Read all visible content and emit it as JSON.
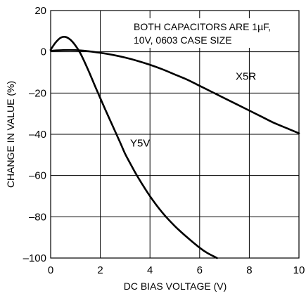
{
  "chart_data": {
    "type": "line",
    "xlabel": "DC BIAS VOLTAGE (V)",
    "ylabel": "CHANGE IN VALUE (%)",
    "xlim": [
      0,
      10
    ],
    "ylim": [
      -100,
      20
    ],
    "x_ticks": [
      "0",
      "2",
      "4",
      "6",
      "8",
      "10"
    ],
    "y_ticks": [
      "20",
      "0",
      "–20",
      "–40",
      "–60",
      "–80",
      "–100"
    ],
    "grid": true,
    "annotation": {
      "line1": "BOTH CAPACITORS ARE 1µF,",
      "line2": "10V, 0603 CASE SIZE"
    },
    "series": [
      {
        "name": "X5R",
        "x": [
          0,
          0.5,
          1,
          1.5,
          2,
          2.5,
          3,
          3.5,
          4,
          4.5,
          5,
          5.5,
          6,
          6.5,
          7,
          7.5,
          8,
          8.5,
          9,
          9.5,
          10
        ],
        "y": [
          0.5,
          0.8,
          0.8,
          0.3,
          -0.5,
          -1.5,
          -2.8,
          -4.4,
          -6.3,
          -8.5,
          -11,
          -13.5,
          -16.5,
          -19.5,
          -22.5,
          -25.5,
          -28.5,
          -31.5,
          -34.5,
          -37,
          -39.5
        ]
      },
      {
        "name": "Y5V",
        "x": [
          0,
          0.2,
          0.4,
          0.6,
          0.8,
          1.0,
          1.2,
          1.5,
          1.8,
          2.0,
          2.2,
          2.5,
          2.8,
          3.0,
          3.2,
          3.5,
          4.0,
          4.5,
          5.0,
          5.5,
          6.0,
          6.3,
          6.7
        ],
        "y": [
          1,
          4.5,
          6.8,
          7.2,
          5.8,
          3.0,
          -0.8,
          -8.5,
          -17,
          -22.5,
          -28,
          -36,
          -44,
          -49.5,
          -54,
          -60.5,
          -70,
          -78,
          -84.5,
          -90,
          -95,
          -97.5,
          -100
        ]
      }
    ],
    "curve_labels": [
      {
        "series": "X5R",
        "text": "X5R",
        "x": 7.45,
        "y": -13.5
      },
      {
        "series": "Y5V",
        "text": "Y5V",
        "x": 3.2,
        "y": -46
      }
    ]
  }
}
